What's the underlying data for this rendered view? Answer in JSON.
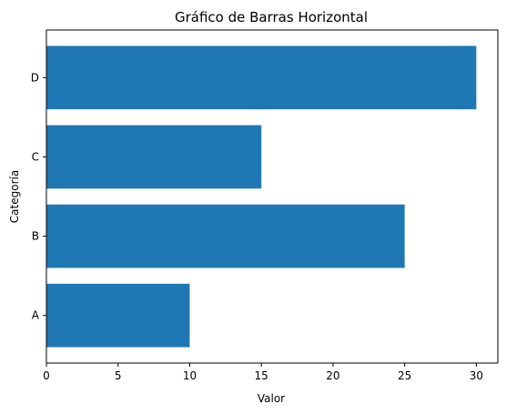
{
  "chart_data": {
    "type": "bar",
    "orientation": "horizontal",
    "title": "Gráfico de Barras Horizontal",
    "xlabel": "Valor",
    "ylabel": "Categoría",
    "categories": [
      "A",
      "B",
      "C",
      "D"
    ],
    "values": [
      10,
      25,
      15,
      30
    ],
    "xlim": [
      0,
      31.5
    ],
    "xticks": [
      "0",
      "5",
      "10",
      "15",
      "20",
      "25",
      "30"
    ],
    "bar_color": "#1f77b4",
    "grid": false,
    "legend": "none"
  }
}
